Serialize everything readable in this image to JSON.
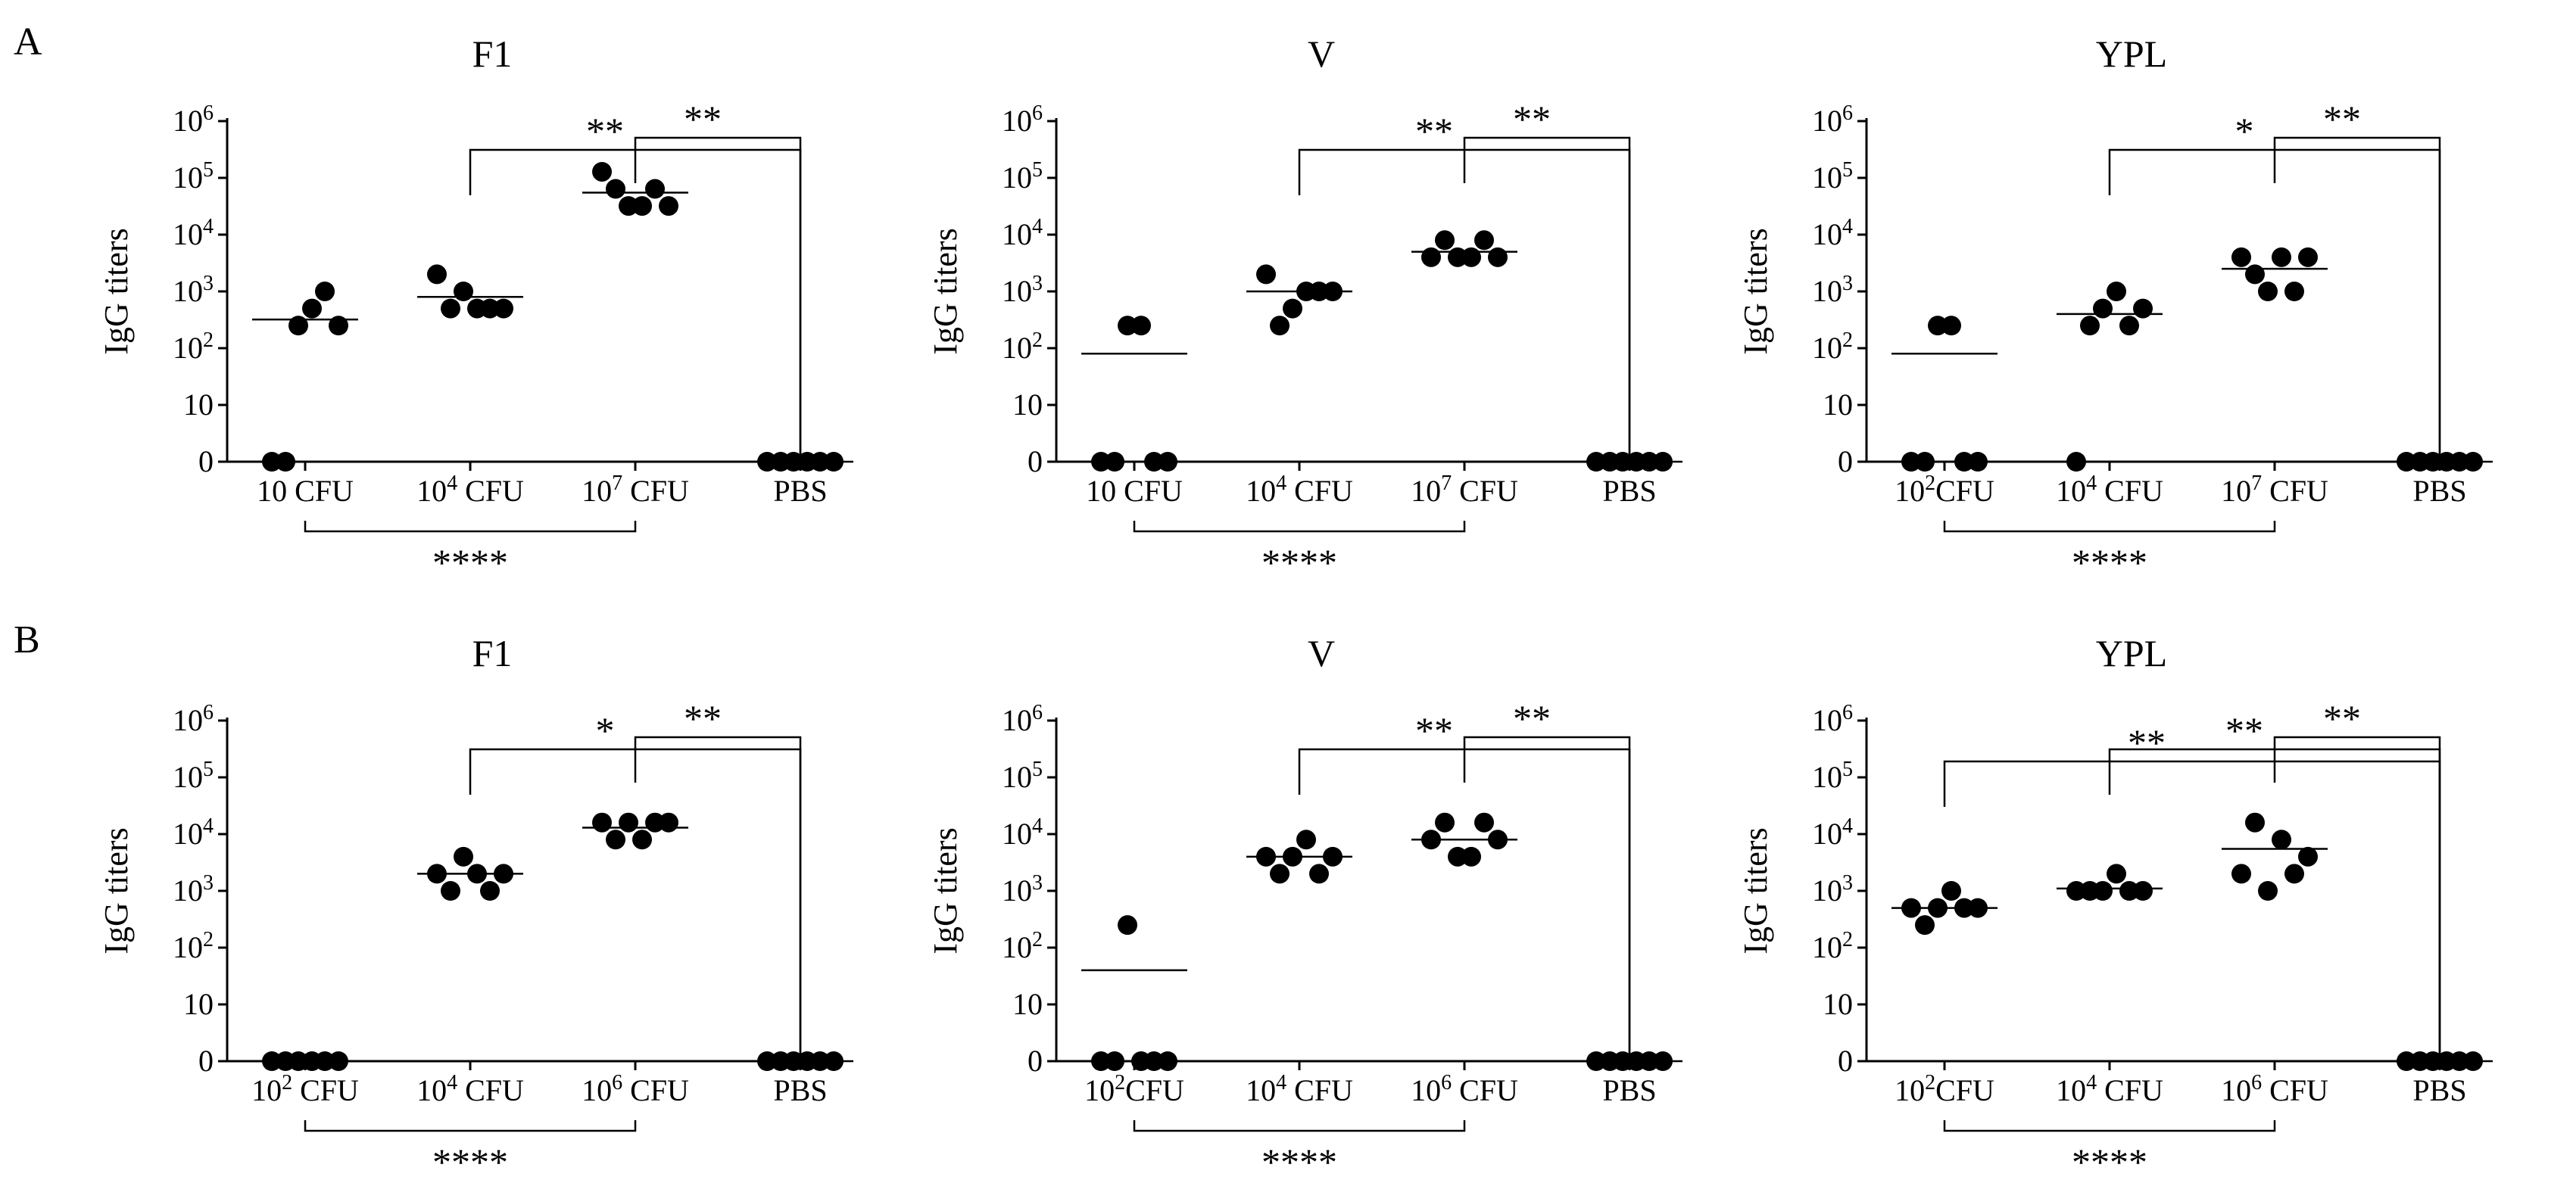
{
  "panels": [
    {
      "letter": "A"
    },
    {
      "letter": "B"
    }
  ],
  "y_ticks": [
    "0",
    "10",
    "10^2",
    "10^3",
    "10^4",
    "10^5",
    "10^6"
  ],
  "chart_data": [
    {
      "type": "scatter",
      "panel": "A",
      "title": "F1",
      "ylabel": "IgG titers",
      "yscale": "log",
      "ylim": [
        0,
        1000000
      ],
      "categories": [
        "10 CFU",
        "10^4 CFU",
        "10^7 CFU",
        "PBS"
      ],
      "points": [
        [
          0,
          0,
          250,
          500,
          1000,
          250
        ],
        [
          2000,
          500,
          1000,
          500,
          500,
          500
        ],
        [
          128000,
          64000,
          32000,
          32000,
          64000,
          32000
        ],
        [
          0,
          0,
          0,
          0,
          0,
          0
        ]
      ],
      "medians": [
        320,
        800,
        55000,
        0
      ],
      "brackets": [
        {
          "from": 1,
          "to": 3,
          "label": "**",
          "pos": "top"
        },
        {
          "from": 2,
          "to": 3,
          "label": "**",
          "pos": "top"
        },
        {
          "from": 0,
          "to": 2,
          "label": "****",
          "pos": "bottom"
        }
      ]
    },
    {
      "type": "scatter",
      "panel": "A",
      "title": "V",
      "ylabel": "IgG titers",
      "yscale": "log",
      "ylim": [
        0,
        1000000
      ],
      "categories": [
        "10 CFU",
        "10^4 CFU",
        "10^7 CFU",
        "PBS"
      ],
      "points": [
        [
          0,
          0,
          250,
          250,
          0,
          0
        ],
        [
          2000,
          250,
          500,
          1000,
          1000,
          1000
        ],
        [
          4000,
          8000,
          4000,
          4000,
          8000,
          4000
        ],
        [
          0,
          0,
          0,
          0,
          0,
          0
        ]
      ],
      "medians": [
        80,
        1000,
        5000,
        0
      ],
      "brackets": [
        {
          "from": 1,
          "to": 3,
          "label": "**",
          "pos": "top"
        },
        {
          "from": 2,
          "to": 3,
          "label": "**",
          "pos": "top"
        },
        {
          "from": 0,
          "to": 2,
          "label": "****",
          "pos": "bottom"
        }
      ]
    },
    {
      "type": "scatter",
      "panel": "A",
      "title": "YPL",
      "ylabel": "IgG titers",
      "yscale": "log",
      "ylim": [
        0,
        1000000
      ],
      "categories": [
        "10^2CFU",
        "10^4 CFU",
        "10^7 CFU",
        "PBS"
      ],
      "points": [
        [
          0,
          0,
          250,
          250,
          0,
          0
        ],
        [
          0,
          250,
          500,
          1000,
          250,
          500
        ],
        [
          4000,
          2000,
          1000,
          4000,
          1000,
          4000
        ],
        [
          0,
          0,
          0,
          0,
          0,
          0
        ]
      ],
      "medians": [
        80,
        400,
        2500,
        0
      ],
      "brackets": [
        {
          "from": 1,
          "to": 3,
          "label": "*",
          "pos": "top"
        },
        {
          "from": 2,
          "to": 3,
          "label": "**",
          "pos": "top"
        },
        {
          "from": 0,
          "to": 2,
          "label": "****",
          "pos": "bottom"
        }
      ]
    },
    {
      "type": "scatter",
      "panel": "B",
      "title": "F1",
      "ylabel": "IgG titers",
      "yscale": "log",
      "ylim": [
        0,
        1000000
      ],
      "categories": [
        "10^2 CFU",
        "10^4 CFU",
        "10^6 CFU",
        "PBS"
      ],
      "points": [
        [
          0,
          0,
          0,
          0,
          0,
          0
        ],
        [
          2000,
          1000,
          4000,
          2000,
          1000,
          2000
        ],
        [
          16000,
          8000,
          16000,
          8000,
          16000,
          16000
        ],
        [
          0,
          0,
          0,
          0,
          0,
          0
        ]
      ],
      "medians": [
        0,
        2000,
        13000,
        0
      ],
      "brackets": [
        {
          "from": 1,
          "to": 3,
          "label": "*",
          "pos": "top"
        },
        {
          "from": 2,
          "to": 3,
          "label": "**",
          "pos": "top"
        },
        {
          "from": 0,
          "to": 2,
          "label": "****",
          "pos": "bottom"
        }
      ]
    },
    {
      "type": "scatter",
      "panel": "B",
      "title": "V",
      "ylabel": "IgG titers",
      "yscale": "log",
      "ylim": [
        0,
        1000000
      ],
      "categories": [
        "10^2CFU",
        "10^4 CFU",
        "10^6 CFU",
        "PBS"
      ],
      "points": [
        [
          0,
          0,
          250,
          0,
          0,
          0
        ],
        [
          4000,
          2000,
          4000,
          8000,
          2000,
          4000
        ],
        [
          8000,
          16000,
          4000,
          4000,
          16000,
          8000
        ],
        [
          0,
          0,
          0,
          0,
          0,
          0
        ]
      ],
      "medians": [
        40,
        4000,
        8000,
        0
      ],
      "brackets": [
        {
          "from": 1,
          "to": 3,
          "label": "**",
          "pos": "top"
        },
        {
          "from": 2,
          "to": 3,
          "label": "**",
          "pos": "top"
        },
        {
          "from": 0,
          "to": 2,
          "label": "****",
          "pos": "bottom"
        }
      ]
    },
    {
      "type": "scatter",
      "panel": "B",
      "title": "YPL",
      "ylabel": "IgG titers",
      "yscale": "log",
      "ylim": [
        0,
        1000000
      ],
      "categories": [
        "10^2CFU",
        "10^4 CFU",
        "10^6 CFU",
        "PBS"
      ],
      "points": [
        [
          500,
          250,
          500,
          1000,
          500,
          500
        ],
        [
          1000,
          1000,
          1000,
          2000,
          1000,
          1000
        ],
        [
          2000,
          16000,
          1000,
          8000,
          2000,
          4000
        ],
        [
          0,
          0,
          0,
          0,
          0,
          0
        ]
      ],
      "medians": [
        500,
        1100,
        5500,
        0
      ],
      "brackets": [
        {
          "from": 0,
          "to": 3,
          "label": "**",
          "pos": "top"
        },
        {
          "from": 1,
          "to": 3,
          "label": "**",
          "pos": "top"
        },
        {
          "from": 2,
          "to": 3,
          "label": "**",
          "pos": "top"
        },
        {
          "from": 0,
          "to": 2,
          "label": "****",
          "pos": "bottom"
        }
      ]
    }
  ]
}
